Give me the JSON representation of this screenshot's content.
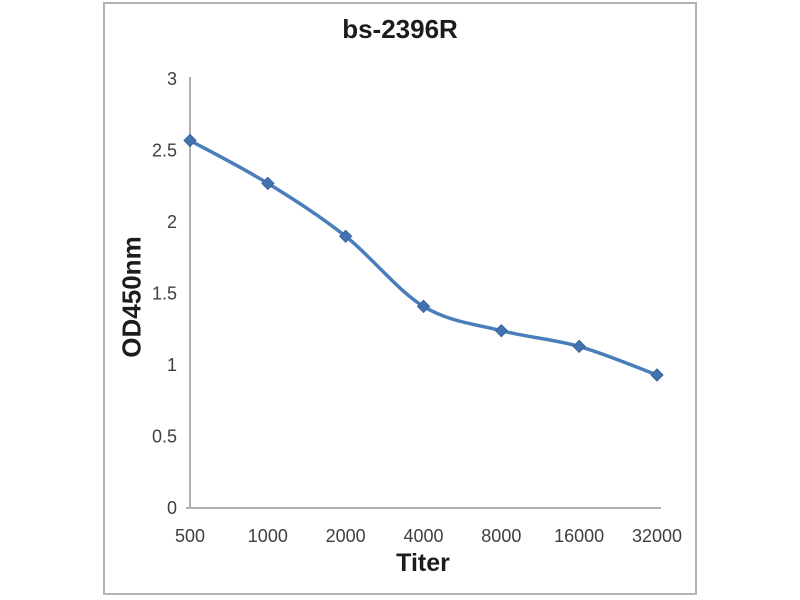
{
  "frame": {
    "border_color": "#b3b3b3",
    "background": "#ffffff"
  },
  "chart_data": {
    "type": "line",
    "title": "bs-2396R",
    "xlabel": "Titer",
    "ylabel": "OD450nm",
    "categories": [
      "500",
      "1000",
      "2000",
      "4000",
      "8000",
      "16000",
      "32000"
    ],
    "series": [
      {
        "name": "bs-2396R",
        "values": [
          2.57,
          2.27,
          1.9,
          1.41,
          1.24,
          1.13,
          0.93
        ]
      }
    ],
    "ylim": [
      0,
      3
    ],
    "ytick_labels": [
      "0",
      "0.5",
      "1",
      "1.5",
      "2",
      "2.5",
      "3"
    ],
    "ytick_values": [
      0,
      0.5,
      1,
      1.5,
      2,
      2.5,
      3
    ],
    "grid": false,
    "legend": "none",
    "smooth": true,
    "marker": "diamond",
    "colors": {
      "line": "#4a7ebb",
      "marker_fill": "#4273b1",
      "marker_stroke": "#3a639f",
      "axis": "#a6a6a6",
      "tick_text": "#3f3f3f",
      "title_text": "#1c1c1c"
    }
  }
}
